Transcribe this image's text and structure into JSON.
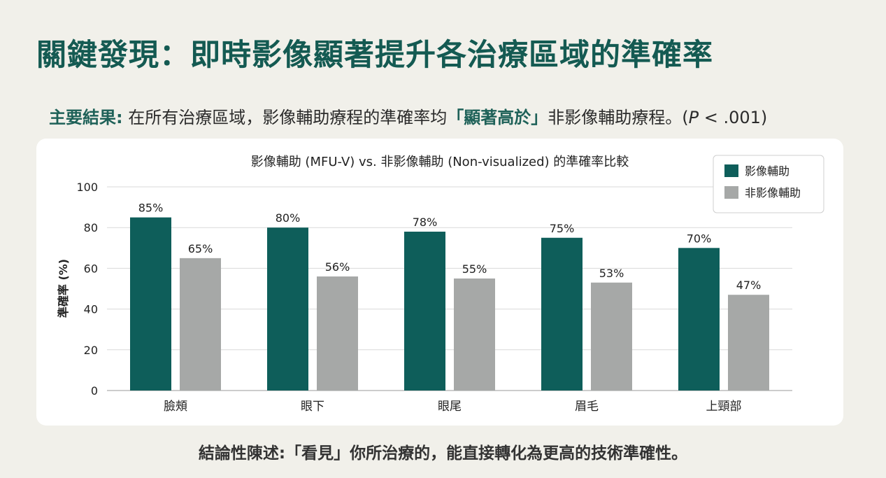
{
  "page": {
    "title": "關鍵發現：即時影像顯著提升各治療區域的準確率",
    "subtitle": {
      "lead": "主要結果:",
      "text1": " 在所有治療區域，影像輔助療程的準確率均",
      "emph": "「顯著高於」",
      "text2": "非影像輔助療程。(",
      "p": "P",
      "text3": " < .001)"
    },
    "conclusion": "結論性陳述:「看見」你所治療的，能直接轉化為更高的技術準確性。"
  },
  "colors": {
    "background": "#f1f0ea",
    "title": "#145a52",
    "series_visual": "#0e5e5a",
    "series_nonvisual": "#a6a8a7",
    "grid": "#d9d9d9"
  },
  "chart_data": {
    "type": "bar",
    "title": "影像輔助 (MFU-V) vs. 非影像輔助 (Non-visualized) 的準確率比較",
    "xlabel": "",
    "ylabel": "準確率 (%)",
    "ylim": [
      0,
      100
    ],
    "yticks": [
      0,
      20,
      40,
      60,
      80,
      100
    ],
    "grid": true,
    "legend_position": "top-right",
    "categories": [
      "臉頰",
      "眼下",
      "眼尾",
      "眉毛",
      "上頸部"
    ],
    "series": [
      {
        "name": "影像輔助",
        "values": [
          85,
          80,
          78,
          75,
          70
        ],
        "labels": [
          "85%",
          "80%",
          "78%",
          "75%",
          "70%"
        ]
      },
      {
        "name": "非影像輔助",
        "values": [
          65,
          56,
          55,
          53,
          47
        ],
        "labels": [
          "65%",
          "56%",
          "55%",
          "53%",
          "47%"
        ]
      }
    ]
  }
}
